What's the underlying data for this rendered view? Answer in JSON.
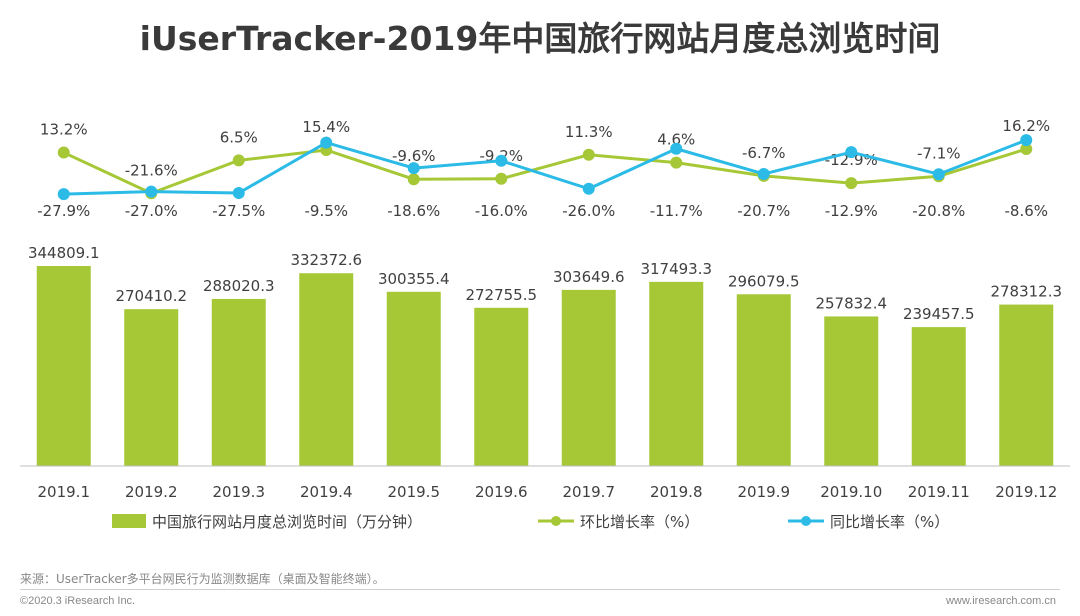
{
  "title": "iUserTracker-2019年中国旅行网站月度总浏览时间",
  "source_note": "来源：UserTracker多平台网民行为监测数据库（桌面及智能终端）。",
  "copyright": "©2020.3 iResearch Inc.",
  "website": "www.iresearch.com.cn",
  "colors": {
    "bar": "#a6c837",
    "mom_line": "#a6c837",
    "yoy_line": "#2bbbe6",
    "axis": "#888888",
    "label": "#404040"
  },
  "chart_data": {
    "type": "bar+line",
    "title": "iUserTracker-2019年中国旅行网站月度总浏览时间",
    "categories": [
      "2019.1",
      "2019.2",
      "2019.3",
      "2019.4",
      "2019.5",
      "2019.6",
      "2019.7",
      "2019.8",
      "2019.9",
      "2019.10",
      "2019.11",
      "2019.12"
    ],
    "bar_series": {
      "name": "中国旅行网站月度总浏览时间（万分钟）",
      "values": [
        344809.1,
        270410.2,
        288020.3,
        332372.6,
        300355.4,
        272755.5,
        303649.6,
        317493.3,
        296079.5,
        257832.4,
        239457.5,
        278312.3
      ],
      "labels": [
        "344809.1",
        "270410.2",
        "288020.3",
        "332372.6",
        "300355.4",
        "272755.5",
        "303649.6",
        "317493.3",
        "296079.5",
        "257832.4",
        "239457.5",
        "278312.3"
      ]
    },
    "line_series": [
      {
        "name": "环比增长率（%）",
        "values": [
          13.2,
          -21.6,
          6.5,
          15.4,
          -9.6,
          -9.2,
          11.3,
          4.6,
          -6.7,
          -12.9,
          -7.1,
          16.2
        ],
        "labels": [
          "13.2%",
          "-21.6%",
          "6.5%",
          "15.4%",
          "-9.6%",
          "-9.2%",
          "11.3%",
          "4.6%",
          "-6.7%",
          "-12.9%",
          "-7.1%",
          "16.2%"
        ]
      },
      {
        "name": "同比增长率（%）",
        "values": [
          -27.9,
          -27.0,
          -27.5,
          -9.5,
          -18.6,
          -16.0,
          -26.0,
          -11.7,
          -20.7,
          -12.9,
          -20.8,
          -8.6
        ],
        "labels": [
          "-27.9%",
          "-27.0%",
          "-27.5%",
          "-9.5%",
          "-18.6%",
          "-16.0%",
          "-26.0%",
          "-11.7%",
          "-20.7%",
          "-12.9%",
          "-20.8%",
          "-8.6%"
        ]
      }
    ],
    "ylim": [
      0,
      360000
    ],
    "xlabel": "",
    "ylabel": "",
    "legend": "bottom"
  }
}
